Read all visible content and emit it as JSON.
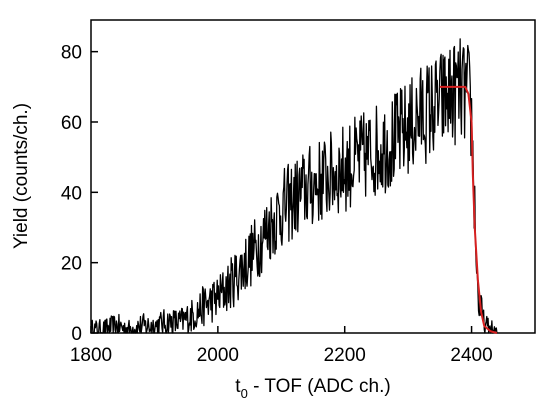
{
  "chart_data": {
    "type": "line",
    "xlabel_main": "t",
    "xlabel_sub": "0",
    "xlabel_rest": " - TOF (ADC ch.)",
    "ylabel": "Yield (counts/ch.)",
    "xlim": [
      1800,
      2500
    ],
    "ylim": [
      0,
      89
    ],
    "x_ticks": [
      1800,
      2000,
      2200,
      2400
    ],
    "x_tick_labels": [
      "1800",
      "2000",
      "2200",
      "2400"
    ],
    "y_ticks": [
      0,
      20,
      40,
      60,
      80
    ],
    "y_tick_labels": [
      "0",
      "20",
      "40",
      "60",
      "80"
    ],
    "grid": false,
    "series": [
      {
        "color": "#000000",
        "x": [
          1800,
          1820,
          1840,
          1860,
          1880,
          1900,
          1920,
          1940,
          1960,
          1980,
          2000,
          2020,
          2040,
          2060,
          2080,
          2100,
          2120,
          2140,
          2160,
          2180,
          2200,
          2220,
          2240,
          2260,
          2280,
          2300,
          2320,
          2340,
          2360,
          2380,
          2390,
          2395,
          2400,
          2405,
          2410,
          2420,
          2440
        ],
        "y": [
          1,
          1,
          2,
          1,
          2,
          2,
          3,
          3,
          5,
          8,
          10,
          14,
          19,
          24,
          30,
          35,
          38,
          41,
          43,
          45,
          47,
          49,
          51,
          53,
          55,
          58,
          62,
          64,
          67,
          69,
          68,
          68,
          60,
          35,
          10,
          2,
          0
        ]
      },
      {
        "color": "#d62020",
        "x": [
          2350,
          2390,
          2395,
          2400,
          2402,
          2405,
          2410,
          2415,
          2420,
          2430,
          2440
        ],
        "y": [
          70,
          70,
          68,
          60,
          45,
          30,
          15,
          6,
          2,
          0.5,
          0
        ]
      }
    ]
  }
}
